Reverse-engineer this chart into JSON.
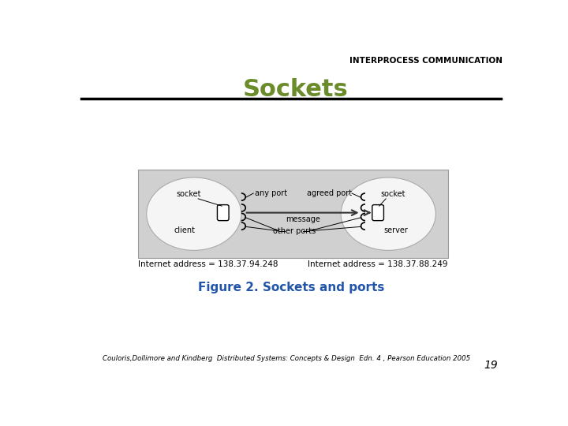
{
  "header_text": "INTERPROCESS COMMUNICATION",
  "title_text": "Sockets",
  "title_color": "#6b8c2a",
  "figure_caption": "Figure 2. Sockets and ports",
  "figure_caption_color": "#2255aa",
  "footer_text": "Couloris,Dollimore and Kindberg  Distributed Systems: Concepts & Design  Edn. 4 , Pearson Education 2005",
  "page_number": "19",
  "client_address": "Internet address = 138.37.94.248",
  "server_address": "Internet address = 138.37.88.249",
  "bg_color": "#ffffff",
  "diagram_bg": "#d0d0d0",
  "ellipse_color": "#f5f5f5"
}
